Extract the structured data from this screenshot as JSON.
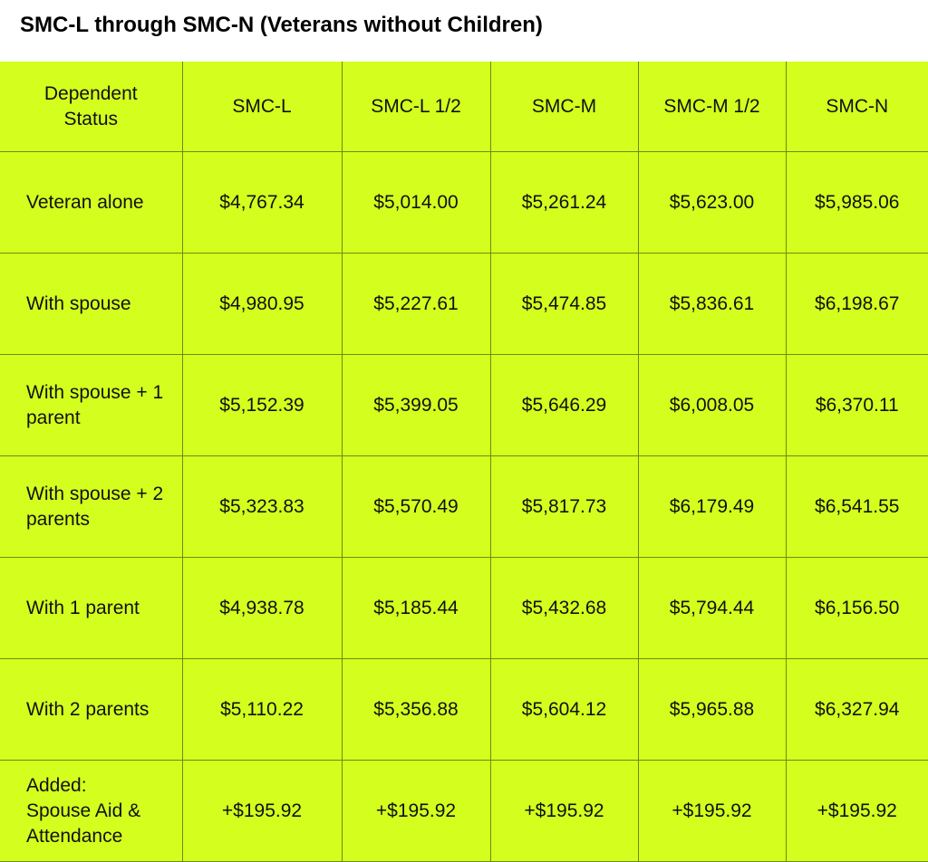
{
  "title": "SMC-L through SMC-N (Veterans without Children)",
  "table": {
    "headers": [
      "Dependent Status",
      "SMC-L",
      "SMC-L 1/2",
      "SMC-M",
      "SMC-M 1/2",
      "SMC-N"
    ],
    "rows": [
      {
        "label": "Veteran alone",
        "values": [
          "$4,767.34",
          "$5,014.00",
          "$5,261.24",
          "$5,623.00",
          "$5,985.06"
        ]
      },
      {
        "label": "With spouse",
        "values": [
          "$4,980.95",
          "$5,227.61",
          "$5,474.85",
          "$5,836.61",
          "$6,198.67"
        ]
      },
      {
        "label": "With spouse + 1 parent",
        "values": [
          "$5,152.39",
          "$5,399.05",
          "$5,646.29",
          "$6,008.05",
          "$6,370.11"
        ]
      },
      {
        "label": "With spouse + 2 parents",
        "values": [
          "$5,323.83",
          "$5,570.49",
          "$5,817.73",
          "$6,179.49",
          "$6,541.55"
        ]
      },
      {
        "label": "With 1 parent",
        "values": [
          "$4,938.78",
          "$5,185.44",
          "$5,432.68",
          "$5,794.44",
          "$6,156.50"
        ]
      },
      {
        "label": "With 2 parents",
        "values": [
          "$5,110.22",
          "$5,356.88",
          "$5,604.12",
          "$5,965.88",
          "$6,327.94"
        ]
      },
      {
        "label": "Added: Spouse Aid & Attendance",
        "values": [
          "+$195.92",
          "+$195.92",
          "+$195.92",
          "+$195.92",
          "+$195.92"
        ]
      }
    ]
  },
  "colors": {
    "table_bg": "#d4ff1e",
    "border": "#6e8a10"
  }
}
